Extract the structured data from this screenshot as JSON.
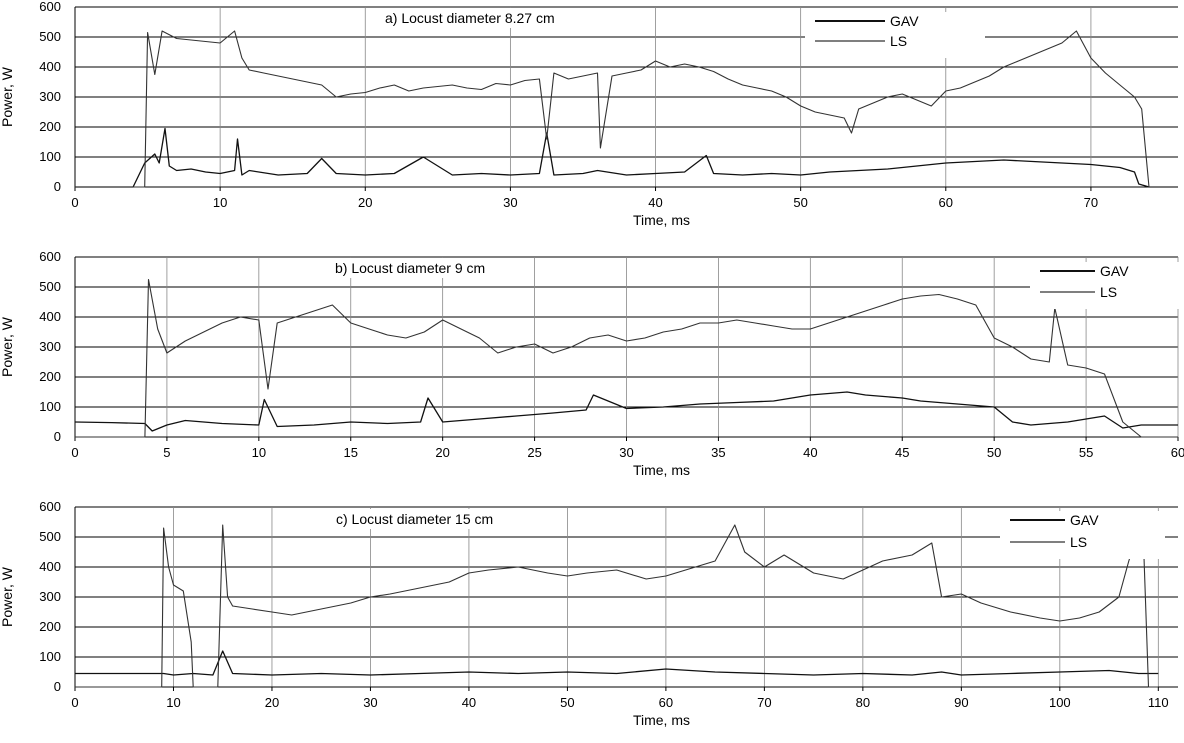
{
  "chart_data": [
    {
      "type": "line",
      "title": "a) Locust diameter 8.27 cm",
      "xlabel": "Time, ms",
      "ylabel": "Power, W",
      "xlim": [
        0,
        76
      ],
      "ylim": [
        0,
        600
      ],
      "xticks": [
        0,
        10,
        20,
        30,
        40,
        50,
        60,
        70
      ],
      "yticks": [
        0,
        100,
        200,
        300,
        400,
        500,
        600
      ],
      "grid": true,
      "legend": "top-right",
      "series": [
        {
          "name": "GAV",
          "color": "#111111",
          "x": [
            0,
            2.5,
            4.0,
            4.8,
            5.5,
            5.8,
            6.2,
            6.5,
            7,
            8,
            9,
            10,
            11,
            11.2,
            11.5,
            12,
            14,
            16,
            17,
            18,
            20,
            22,
            24,
            26,
            28,
            30,
            32,
            32.5,
            33,
            35,
            36,
            38,
            40,
            42,
            43.5,
            44,
            46,
            48,
            50,
            52,
            54,
            56,
            58,
            60,
            62,
            64,
            66,
            68,
            70,
            72,
            73,
            73.3,
            74,
            76
          ],
          "y": [
            0,
            0,
            0,
            80,
            110,
            80,
            195,
            70,
            55,
            60,
            50,
            45,
            55,
            160,
            40,
            55,
            40,
            45,
            95,
            45,
            40,
            45,
            100,
            40,
            45,
            40,
            45,
            180,
            40,
            45,
            55,
            40,
            45,
            50,
            105,
            45,
            40,
            45,
            40,
            50,
            55,
            60,
            70,
            80,
            85,
            90,
            85,
            80,
            75,
            65,
            50,
            10,
            0,
            0
          ]
        },
        {
          "name": "LS",
          "color": "#333333",
          "x": [
            0,
            2.5,
            4.0,
            4.8,
            5.0,
            5.5,
            6.0,
            7,
            8,
            9,
            10,
            11,
            11.5,
            12,
            13,
            14,
            15,
            16,
            17,
            18,
            19,
            20,
            21,
            22,
            23,
            24,
            25,
            26,
            27,
            28,
            29,
            30,
            31,
            32,
            32.5,
            33,
            34,
            35,
            36,
            36.2,
            37,
            38,
            39,
            40,
            41,
            42,
            43,
            44,
            45,
            46,
            47,
            48,
            49,
            50,
            51,
            52,
            53,
            53.5,
            54,
            55,
            56,
            57,
            58,
            59,
            60,
            61,
            62,
            63,
            64,
            65,
            66,
            67,
            68,
            69,
            70,
            71,
            72,
            73,
            73.5,
            74,
            76
          ],
          "y": [
            0,
            0,
            0,
            0,
            515,
            375,
            520,
            495,
            490,
            485,
            480,
            520,
            430,
            390,
            380,
            370,
            360,
            350,
            340,
            300,
            310,
            315,
            330,
            340,
            320,
            330,
            335,
            340,
            330,
            325,
            345,
            340,
            355,
            360,
            160,
            380,
            360,
            370,
            380,
            130,
            370,
            380,
            390,
            420,
            400,
            410,
            400,
            385,
            360,
            340,
            330,
            320,
            300,
            270,
            250,
            240,
            230,
            180,
            260,
            280,
            300,
            310,
            290,
            270,
            320,
            330,
            350,
            370,
            400,
            420,
            440,
            460,
            480,
            520,
            430,
            380,
            340,
            300,
            260,
            0,
            0
          ]
        }
      ]
    },
    {
      "type": "line",
      "title": "b) Locust diameter 9 cm",
      "xlabel": "Time, ms",
      "ylabel": "Power, W",
      "xlim": [
        0,
        60
      ],
      "ylim": [
        0,
        600
      ],
      "xticks": [
        0,
        5,
        10,
        15,
        20,
        25,
        30,
        35,
        40,
        45,
        50,
        55,
        60
      ],
      "yticks": [
        0,
        100,
        200,
        300,
        400,
        500,
        600
      ],
      "grid": true,
      "legend": "top-right",
      "series": [
        {
          "name": "GAV",
          "color": "#111111",
          "x": [
            0,
            2,
            3.8,
            4.2,
            5,
            6,
            8,
            10,
            10.3,
            11,
            13,
            15,
            17,
            18.8,
            19.2,
            20,
            22,
            24,
            26,
            27.8,
            28.2,
            30,
            32,
            34,
            36,
            38,
            40,
            41,
            42,
            43,
            44,
            45,
            46,
            48,
            50,
            51,
            52,
            54,
            55,
            56,
            57,
            58,
            60
          ],
          "y": [
            50,
            48,
            45,
            20,
            40,
            55,
            45,
            40,
            125,
            35,
            40,
            50,
            45,
            50,
            130,
            50,
            60,
            70,
            80,
            90,
            140,
            95,
            100,
            110,
            115,
            120,
            140,
            145,
            150,
            140,
            135,
            130,
            120,
            110,
            100,
            50,
            40,
            50,
            60,
            70,
            30,
            40,
            40
          ]
        },
        {
          "name": "LS",
          "color": "#333333",
          "x": [
            0,
            3.5,
            3.8,
            4.0,
            4.5,
            5,
            6,
            7,
            8,
            9,
            10,
            10.5,
            11,
            12,
            13,
            14,
            15,
            16,
            17,
            18,
            19,
            20,
            21,
            22,
            23,
            24,
            25,
            26,
            27,
            28,
            29,
            30,
            31,
            32,
            33,
            34,
            35,
            36,
            37,
            38,
            39,
            40,
            41,
            42,
            43,
            44,
            45,
            46,
            47,
            48,
            49,
            50,
            51,
            52,
            53,
            53.3,
            54,
            55,
            56,
            57,
            58,
            60
          ],
          "y": [
            0,
            0,
            0,
            525,
            360,
            280,
            320,
            350,
            380,
            400,
            390,
            160,
            380,
            400,
            420,
            440,
            380,
            360,
            340,
            330,
            350,
            390,
            360,
            330,
            280,
            300,
            310,
            280,
            300,
            330,
            340,
            320,
            330,
            350,
            360,
            380,
            380,
            390,
            380,
            370,
            360,
            360,
            380,
            400,
            420,
            440,
            460,
            470,
            475,
            460,
            440,
            330,
            300,
            260,
            250,
            430,
            240,
            230,
            210,
            50,
            0,
            0
          ]
        }
      ]
    },
    {
      "type": "line",
      "title": "c) Locust diameter 15 cm",
      "xlabel": "Time, ms",
      "ylabel": "Power, W",
      "xlim": [
        0,
        112
      ],
      "ylim": [
        0,
        600
      ],
      "xticks": [
        0,
        10,
        20,
        30,
        40,
        50,
        60,
        70,
        80,
        90,
        100,
        110
      ],
      "yticks": [
        0,
        100,
        200,
        300,
        400,
        500,
        600
      ],
      "grid": true,
      "legend": "top-right",
      "series": [
        {
          "name": "GAV",
          "color": "#111111",
          "x": [
            0,
            5,
            9,
            10,
            12,
            14,
            15,
            16,
            20,
            25,
            30,
            35,
            40,
            45,
            50,
            55,
            60,
            65,
            70,
            75,
            80,
            85,
            88,
            90,
            95,
            100,
            105,
            108,
            110
          ],
          "y": [
            45,
            45,
            45,
            40,
            45,
            40,
            120,
            45,
            40,
            45,
            40,
            45,
            50,
            45,
            50,
            45,
            60,
            50,
            45,
            40,
            45,
            40,
            50,
            40,
            45,
            50,
            55,
            45,
            45
          ]
        },
        {
          "name": "LS",
          "color": "#333333",
          "x": [
            0,
            8.8,
            9.0,
            9.5,
            10,
            11,
            11.8,
            12,
            14.5,
            15,
            15.5,
            16,
            18,
            20,
            22,
            25,
            28,
            30,
            32,
            35,
            38,
            40,
            42,
            45,
            48,
            50,
            52,
            55,
            58,
            60,
            62,
            65,
            67,
            68,
            70,
            72,
            75,
            78,
            80,
            82,
            85,
            87,
            88,
            90,
            92,
            95,
            98,
            100,
            102,
            104,
            106,
            107,
            108,
            108.5,
            109,
            110
          ],
          "y": [
            0,
            0,
            530,
            400,
            340,
            320,
            150,
            0,
            0,
            540,
            300,
            270,
            260,
            250,
            240,
            260,
            280,
            300,
            310,
            330,
            350,
            380,
            390,
            400,
            380,
            370,
            380,
            390,
            360,
            370,
            390,
            420,
            540,
            450,
            400,
            440,
            380,
            360,
            390,
            420,
            440,
            480,
            300,
            310,
            280,
            250,
            230,
            220,
            230,
            250,
            300,
            420,
            520,
            480,
            0,
            0
          ]
        }
      ]
    }
  ]
}
